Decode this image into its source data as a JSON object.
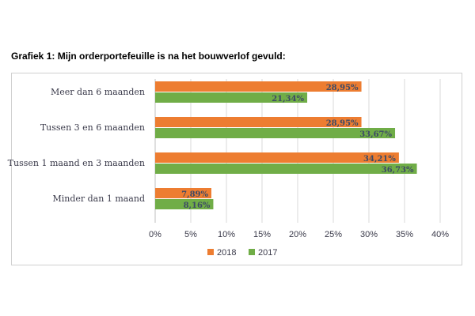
{
  "chart_data": {
    "type": "bar",
    "orientation": "horizontal",
    "title": "Grafiek 1: Mijn orderportefeuille is na het bouwverlof gevuld:",
    "categories": [
      "Meer dan 6 maanden",
      "Tussen 3 en 6 maanden",
      "Tussen 1 maand en 3 maanden",
      "Minder dan 1 maand"
    ],
    "series": [
      {
        "name": "2018",
        "color": "#ED7D31",
        "values": [
          28.95,
          28.95,
          34.21,
          7.89
        ],
        "labels": [
          "28,95%",
          "28,95%",
          "34,21%",
          "7,89%"
        ]
      },
      {
        "name": "2017",
        "color": "#70AD47",
        "values": [
          21.34,
          33.67,
          36.73,
          8.16
        ],
        "labels": [
          "21,34%",
          "33,67%",
          "36,73%",
          "8,16%"
        ]
      }
    ],
    "xlim": [
      0,
      40
    ],
    "ticks": [
      "0%",
      "5%",
      "10%",
      "15%",
      "20%",
      "25%",
      "30%",
      "35%",
      "40%"
    ],
    "grid": true,
    "legend": "bottom"
  }
}
